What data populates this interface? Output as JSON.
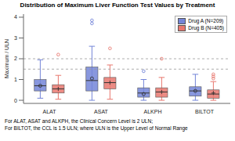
{
  "chart_data": {
    "type": "box",
    "title": "Distribution of Maximum Liver Function Test Values by Treatment",
    "y_label": "Maximum / ULN",
    "categories": [
      "ALAT",
      "ASAT",
      "ALKPH",
      "BILTOT"
    ],
    "ylim": [
      -0.15,
      4.15
    ],
    "yticks": [
      0,
      1,
      2,
      3,
      4
    ],
    "grid": false,
    "legend": "top-right",
    "reference_lines": [
      2,
      1.5
    ],
    "series": [
      {
        "name": "Drug A (N=209)",
        "color": "#7385d8",
        "marker": "circle",
        "whisker_low": [
          0.1,
          0.0,
          0.0,
          0.0
        ],
        "q1": [
          0.45,
          0.45,
          0.15,
          0.2
        ],
        "median": [
          0.7,
          0.95,
          0.35,
          0.45
        ],
        "q3": [
          1.0,
          1.6,
          0.6,
          0.65
        ],
        "whisker_high": [
          1.95,
          2.6,
          1.0,
          1.25
        ],
        "mean": [
          0.7,
          1.05,
          0.3,
          0.45
        ],
        "outliers": [
          [],
          [
            3.7,
            3.85
          ],
          [
            1.4
          ],
          []
        ]
      },
      {
        "name": "Drug B (N=405)",
        "color": "#e8776e",
        "marker": "plus",
        "whisker_low": [
          0.05,
          0.05,
          0.0,
          0.0
        ],
        "q1": [
          0.35,
          0.55,
          0.15,
          0.1
        ],
        "median": [
          0.55,
          0.85,
          0.4,
          0.3
        ],
        "q3": [
          0.75,
          1.1,
          0.6,
          0.5
        ],
        "whisker_high": [
          1.2,
          1.7,
          1.1,
          0.9
        ],
        "mean": [
          0.55,
          0.85,
          0.4,
          0.35
        ],
        "outliers": [
          [
            2.2
          ],
          [
            2.5
          ],
          [
            2.0
          ],
          [
            1.05,
            1.15,
            1.25
          ]
        ]
      }
    ],
    "footnotes": [
      "For ALAT, ASAT and ALKPH, the Clinical Concern Level is 2 ULN;",
      "For BILTOT, the CCL is 1.5 ULN; where ULN is the Upper Level of Normal Range"
    ]
  }
}
